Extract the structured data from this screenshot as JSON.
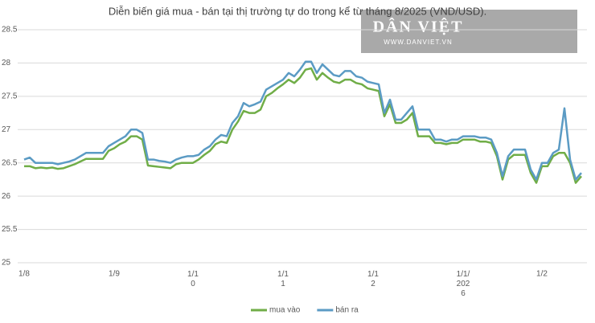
{
  "chart_data": {
    "type": "line",
    "title": "Diễn biến giá mua - bán tại thị trường tự do trong kể từ tháng 8/2025 (VND/USD).",
    "watermark": {
      "brand": "DÂN VIỆT",
      "url": "WWW.DANVIET.VN"
    },
    "categories": [
      "1/8",
      null,
      null,
      null,
      null,
      null,
      null,
      null,
      null,
      null,
      null,
      null,
      null,
      null,
      null,
      null,
      "1/9",
      null,
      null,
      null,
      null,
      null,
      null,
      null,
      null,
      null,
      null,
      null,
      null,
      null,
      "1/1\n0",
      null,
      null,
      null,
      null,
      null,
      null,
      null,
      null,
      null,
      null,
      null,
      null,
      null,
      null,
      null,
      "1/1\n1",
      null,
      null,
      null,
      null,
      null,
      null,
      null,
      null,
      null,
      null,
      null,
      null,
      null,
      null,
      null,
      "1/1\n2",
      null,
      null,
      null,
      null,
      null,
      null,
      null,
      null,
      null,
      null,
      null,
      null,
      null,
      null,
      null,
      "1/1/\n202\n6",
      null,
      null,
      null,
      null,
      null,
      null,
      null,
      null,
      null,
      null,
      null,
      null,
      null,
      "1/2",
      null,
      null,
      null,
      null,
      null,
      null,
      null
    ],
    "series": [
      {
        "name": "mua vào",
        "color": "#70ad47",
        "values": [
          26.45,
          26.45,
          26.42,
          26.43,
          26.42,
          26.43,
          26.41,
          26.42,
          26.45,
          26.48,
          26.52,
          26.56,
          26.56,
          26.56,
          26.56,
          26.68,
          26.72,
          26.78,
          26.82,
          26.9,
          26.9,
          26.85,
          26.46,
          26.45,
          26.44,
          26.43,
          26.42,
          26.48,
          26.5,
          26.5,
          26.5,
          26.55,
          26.62,
          26.68,
          26.78,
          26.82,
          26.8,
          27.0,
          27.12,
          27.28,
          27.25,
          27.25,
          27.3,
          27.5,
          27.55,
          27.62,
          27.68,
          27.75,
          27.7,
          27.78,
          27.9,
          27.92,
          27.75,
          27.85,
          27.78,
          27.72,
          27.7,
          27.75,
          27.75,
          27.7,
          27.68,
          27.62,
          27.6,
          27.58,
          27.2,
          27.38,
          27.1,
          27.1,
          27.15,
          27.25,
          26.9,
          26.9,
          26.9,
          26.8,
          26.8,
          26.78,
          26.8,
          26.8,
          26.85,
          26.85,
          26.85,
          26.82,
          26.82,
          26.8,
          26.6,
          26.25,
          26.55,
          26.62,
          26.62,
          26.62,
          26.35,
          26.2,
          26.45,
          26.45,
          26.6,
          26.65,
          26.65,
          26.5,
          26.2,
          26.3
        ]
      },
      {
        "name": "bán ra",
        "color": "#5b9bc4",
        "values": [
          26.55,
          26.58,
          26.5,
          26.5,
          26.5,
          26.5,
          26.48,
          26.5,
          26.52,
          26.55,
          26.6,
          26.65,
          26.65,
          26.65,
          26.65,
          26.75,
          26.8,
          26.85,
          26.9,
          27.0,
          27.0,
          26.95,
          26.55,
          26.55,
          26.53,
          26.52,
          26.5,
          26.55,
          26.58,
          26.6,
          26.6,
          26.62,
          26.7,
          26.75,
          26.85,
          26.92,
          26.9,
          27.1,
          27.2,
          27.4,
          27.35,
          27.38,
          27.42,
          27.6,
          27.65,
          27.7,
          27.75,
          27.85,
          27.8,
          27.9,
          28.02,
          28.02,
          27.85,
          27.98,
          27.9,
          27.82,
          27.8,
          27.88,
          27.88,
          27.8,
          27.78,
          27.72,
          27.7,
          27.68,
          27.25,
          27.45,
          27.15,
          27.15,
          27.25,
          27.35,
          27.0,
          27.0,
          27.0,
          26.85,
          26.85,
          26.82,
          26.85,
          26.85,
          26.9,
          26.9,
          26.9,
          26.88,
          26.88,
          26.85,
          26.65,
          26.3,
          26.6,
          26.7,
          26.7,
          26.7,
          26.4,
          26.25,
          26.5,
          26.5,
          26.65,
          26.7,
          27.32,
          26.55,
          26.25,
          26.35
        ]
      }
    ],
    "ylim": [
      25,
      28.5
    ],
    "yticks": [
      25,
      25.5,
      26,
      26.5,
      27,
      27.5,
      28,
      28.5
    ],
    "grid": true,
    "legend": "bottom"
  }
}
